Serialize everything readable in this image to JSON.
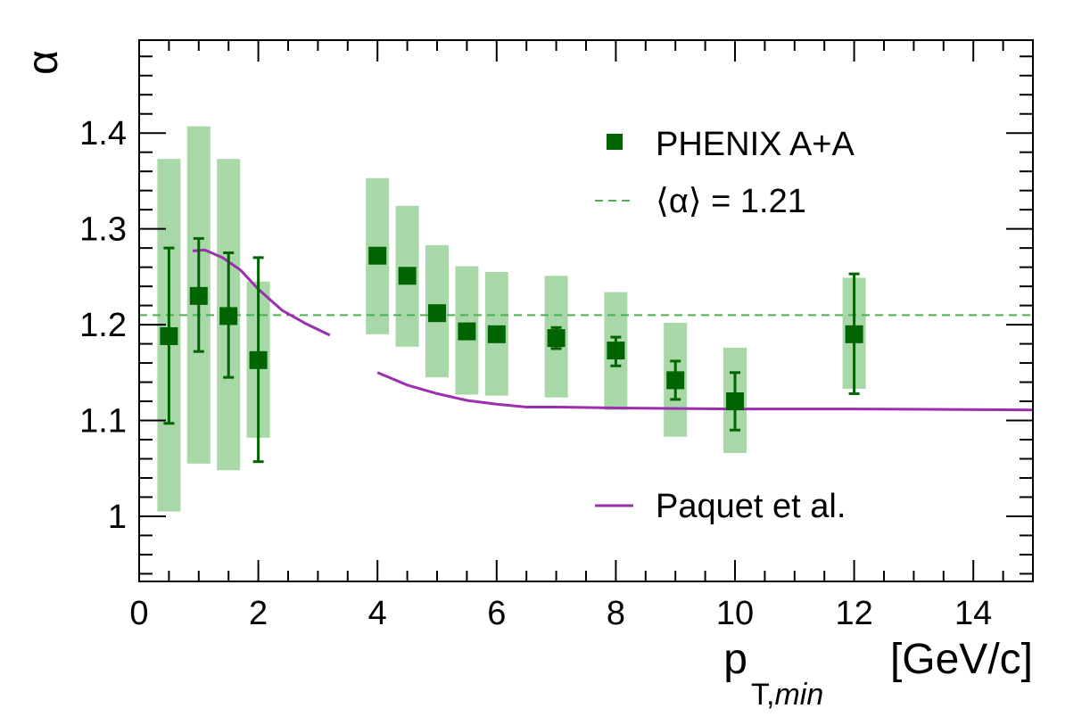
{
  "chart_data": {
    "type": "scatter",
    "xlabel": "p",
    "xlabel_sub": "T,min",
    "xlabel_unit": "[GeV/c]",
    "ylabel": "α",
    "xlim": [
      0,
      15
    ],
    "ylim": [
      0.932,
      1.497
    ],
    "x_ticks": [
      0,
      2,
      4,
      6,
      8,
      10,
      12,
      14
    ],
    "x_tick_labels": [
      "0",
      "2",
      "4",
      "6",
      "8",
      "10",
      "12",
      "14"
    ],
    "y_ticks": [
      1.0,
      1.1,
      1.2,
      1.3,
      1.4
    ],
    "y_tick_labels": [
      "1",
      "1.1",
      "1.2",
      "1.3",
      "1.4"
    ],
    "grid": false,
    "legend_position": "top-right",
    "colors": {
      "marker": "#006400",
      "sys_band": "#a8d8a8",
      "mean_line": "#4caf50",
      "model": "#9b2fae"
    },
    "series": [
      {
        "name": "PHENIX A+A",
        "kind": "points",
        "x": [
          0.5,
          1.0,
          1.5,
          2.0,
          4.0,
          4.5,
          5.0,
          5.5,
          6.0,
          7.0,
          8.0,
          9.0,
          10.0,
          12.0
        ],
        "y": [
          1.188,
          1.23,
          1.209,
          1.163,
          1.272,
          1.251,
          1.212,
          1.193,
          1.19,
          1.186,
          1.173,
          1.142,
          1.12,
          1.19
        ],
        "stat_low": [
          1.097,
          1.172,
          1.145,
          1.057,
          null,
          null,
          null,
          1.188,
          1.183,
          1.175,
          1.157,
          1.122,
          1.09,
          1.128
        ],
        "stat_high": [
          1.28,
          1.29,
          1.275,
          1.27,
          null,
          null,
          null,
          1.198,
          1.197,
          1.197,
          1.187,
          1.162,
          1.15,
          1.253
        ],
        "sys_low": [
          1.005,
          1.055,
          1.048,
          1.082,
          1.19,
          1.177,
          1.145,
          1.127,
          1.126,
          1.124,
          1.111,
          1.083,
          1.066,
          1.133
        ],
        "sys_high": [
          1.373,
          1.407,
          1.373,
          1.245,
          1.353,
          1.324,
          1.283,
          1.261,
          1.255,
          1.251,
          1.234,
          1.202,
          1.176,
          1.249
        ]
      },
      {
        "name": "⟨α⟩ = 1.21",
        "kind": "hline",
        "y": 1.21
      },
      {
        "name": "Paquet et al.",
        "kind": "curve",
        "segments": [
          {
            "x": [
              0.9,
              1.1,
              1.4,
              1.7,
              2.0,
              2.4,
              2.8,
              3.2
            ],
            "y": [
              1.277,
              1.278,
              1.27,
              1.257,
              1.237,
              1.215,
              1.201,
              1.189
            ]
          },
          {
            "x": [
              4.0,
              4.5,
              5.0,
              5.5,
              6.0,
              6.5,
              7.0,
              8.0,
              10.0,
              12.0,
              15.0
            ],
            "y": [
              1.15,
              1.137,
              1.128,
              1.121,
              1.117,
              1.114,
              1.114,
              1.113,
              1.112,
              1.112,
              1.111
            ]
          }
        ]
      }
    ]
  }
}
